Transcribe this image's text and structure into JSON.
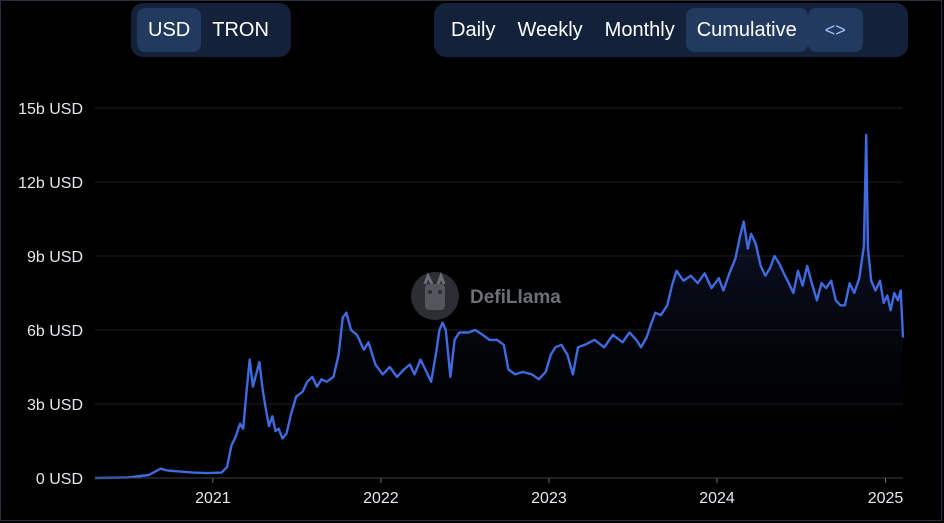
{
  "toggles": {
    "currency": [
      {
        "label": "USD",
        "active": true
      },
      {
        "label": "TRON",
        "active": false
      }
    ],
    "view": [
      {
        "label": "Daily",
        "active": false
      },
      {
        "label": "Weekly",
        "active": false
      },
      {
        "label": "Monthly",
        "active": false
      },
      {
        "label": "Cumulative",
        "active": true
      }
    ],
    "embed_icon": "code-icon",
    "embed_glyph": "<>"
  },
  "watermark": {
    "text": "DefiLlama",
    "icon": "llama-logo-icon"
  },
  "colors": {
    "line": "#3f6ae0",
    "background": "#000000",
    "grid": "#1d1f26",
    "accent": "#223a5e"
  },
  "chart_data": {
    "type": "area",
    "title": "",
    "xlabel": "",
    "ylabel": "",
    "grid": true,
    "y_tick_labels": [
      "0 USD",
      "3b USD",
      "6b USD",
      "9b USD",
      "12b USD",
      "15b USD"
    ],
    "y_ticks": [
      0,
      3,
      6,
      9,
      12,
      15
    ],
    "ylim": [
      0,
      15
    ],
    "y_unit": "billions of USD",
    "x_tick_labels": [
      "2021",
      "2022",
      "2023",
      "2024",
      "2025"
    ],
    "x_ticks": [
      "2021-01-01",
      "2022-01-01",
      "2023-01-01",
      "2024-01-01",
      "2025-01-01"
    ],
    "xlim": [
      "2020-04-20",
      "2025-02-08"
    ],
    "series": [
      {
        "points": [
          [
            "2020-04-20",
            0.0
          ],
          [
            "2020-07-01",
            0.02
          ],
          [
            "2020-08-15",
            0.12
          ],
          [
            "2020-09-10",
            0.38
          ],
          [
            "2020-09-25",
            0.3
          ],
          [
            "2020-10-15",
            0.27
          ],
          [
            "2020-11-20",
            0.22
          ],
          [
            "2020-12-20",
            0.2
          ],
          [
            "2021-01-20",
            0.22
          ],
          [
            "2021-02-01",
            0.45
          ],
          [
            "2021-02-10",
            1.3
          ],
          [
            "2021-02-20",
            1.7
          ],
          [
            "2021-03-01",
            2.2
          ],
          [
            "2021-03-08",
            2.0
          ],
          [
            "2021-03-15",
            3.5
          ],
          [
            "2021-03-22",
            4.8
          ],
          [
            "2021-03-29",
            3.7
          ],
          [
            "2021-04-05",
            4.2
          ],
          [
            "2021-04-12",
            4.7
          ],
          [
            "2021-04-19",
            3.6
          ],
          [
            "2021-04-26",
            2.8
          ],
          [
            "2021-05-03",
            2.1
          ],
          [
            "2021-05-10",
            2.5
          ],
          [
            "2021-05-17",
            1.9
          ],
          [
            "2021-05-24",
            2.0
          ],
          [
            "2021-06-01",
            1.6
          ],
          [
            "2021-06-10",
            1.8
          ],
          [
            "2021-06-20",
            2.6
          ],
          [
            "2021-07-01",
            3.3
          ],
          [
            "2021-07-15",
            3.5
          ],
          [
            "2021-07-25",
            3.9
          ],
          [
            "2021-08-05",
            4.1
          ],
          [
            "2021-08-15",
            3.7
          ],
          [
            "2021-08-25",
            4.0
          ],
          [
            "2021-09-05",
            3.9
          ],
          [
            "2021-09-20",
            4.1
          ],
          [
            "2021-10-01",
            5.0
          ],
          [
            "2021-10-10",
            6.5
          ],
          [
            "2021-10-18",
            6.7
          ],
          [
            "2021-10-28",
            6.0
          ],
          [
            "2021-11-10",
            5.8
          ],
          [
            "2021-11-25",
            5.2
          ],
          [
            "2021-12-05",
            5.5
          ],
          [
            "2021-12-20",
            4.6
          ],
          [
            "2022-01-05",
            4.2
          ],
          [
            "2022-01-20",
            4.5
          ],
          [
            "2022-02-05",
            4.1
          ],
          [
            "2022-02-20",
            4.4
          ],
          [
            "2022-03-05",
            4.6
          ],
          [
            "2022-03-15",
            4.2
          ],
          [
            "2022-03-28",
            4.8
          ],
          [
            "2022-04-10",
            4.3
          ],
          [
            "2022-04-20",
            3.9
          ],
          [
            "2022-05-01",
            5.1
          ],
          [
            "2022-05-08",
            6.0
          ],
          [
            "2022-05-15",
            6.3
          ],
          [
            "2022-05-22",
            6.0
          ],
          [
            "2022-06-01",
            4.1
          ],
          [
            "2022-06-10",
            5.6
          ],
          [
            "2022-06-20",
            5.9
          ],
          [
            "2022-07-10",
            5.9
          ],
          [
            "2022-07-25",
            6.0
          ],
          [
            "2022-08-10",
            5.8
          ],
          [
            "2022-08-25",
            5.6
          ],
          [
            "2022-09-10",
            5.6
          ],
          [
            "2022-09-25",
            5.4
          ],
          [
            "2022-10-05",
            4.4
          ],
          [
            "2022-10-20",
            4.2
          ],
          [
            "2022-11-05",
            4.3
          ],
          [
            "2022-11-25",
            4.2
          ],
          [
            "2022-12-10",
            4.0
          ],
          [
            "2022-12-25",
            4.3
          ],
          [
            "2023-01-05",
            5.0
          ],
          [
            "2023-01-15",
            5.3
          ],
          [
            "2023-01-28",
            5.4
          ],
          [
            "2023-02-10",
            5.0
          ],
          [
            "2023-02-22",
            4.2
          ],
          [
            "2023-03-05",
            5.3
          ],
          [
            "2023-03-20",
            5.4
          ],
          [
            "2023-04-10",
            5.6
          ],
          [
            "2023-05-01",
            5.3
          ],
          [
            "2023-05-20",
            5.8
          ],
          [
            "2023-06-10",
            5.5
          ],
          [
            "2023-06-25",
            5.9
          ],
          [
            "2023-07-10",
            5.6
          ],
          [
            "2023-07-20",
            5.3
          ],
          [
            "2023-08-01",
            5.7
          ],
          [
            "2023-08-10",
            6.2
          ],
          [
            "2023-08-20",
            6.7
          ],
          [
            "2023-09-01",
            6.6
          ],
          [
            "2023-09-15",
            7.0
          ],
          [
            "2023-09-25",
            7.8
          ],
          [
            "2023-10-05",
            8.4
          ],
          [
            "2023-10-20",
            8.0
          ],
          [
            "2023-11-05",
            8.2
          ],
          [
            "2023-11-20",
            7.9
          ],
          [
            "2023-12-05",
            8.3
          ],
          [
            "2023-12-20",
            7.7
          ],
          [
            "2024-01-05",
            8.1
          ],
          [
            "2024-01-15",
            7.6
          ],
          [
            "2024-01-28",
            8.3
          ],
          [
            "2024-02-10",
            8.9
          ],
          [
            "2024-02-20",
            9.8
          ],
          [
            "2024-02-28",
            10.4
          ],
          [
            "2024-03-08",
            9.3
          ],
          [
            "2024-03-15",
            9.9
          ],
          [
            "2024-03-25",
            9.5
          ],
          [
            "2024-04-05",
            8.6
          ],
          [
            "2024-04-15",
            8.2
          ],
          [
            "2024-04-25",
            8.5
          ],
          [
            "2024-05-05",
            9.0
          ],
          [
            "2024-05-15",
            8.7
          ],
          [
            "2024-05-25",
            8.3
          ],
          [
            "2024-06-05",
            7.9
          ],
          [
            "2024-06-15",
            7.5
          ],
          [
            "2024-06-25",
            8.4
          ],
          [
            "2024-07-05",
            7.8
          ],
          [
            "2024-07-15",
            8.6
          ],
          [
            "2024-07-25",
            7.9
          ],
          [
            "2024-08-05",
            7.2
          ],
          [
            "2024-08-15",
            7.9
          ],
          [
            "2024-08-25",
            7.7
          ],
          [
            "2024-09-05",
            8.0
          ],
          [
            "2024-09-15",
            7.2
          ],
          [
            "2024-09-25",
            7.0
          ],
          [
            "2024-10-05",
            7.0
          ],
          [
            "2024-10-15",
            7.9
          ],
          [
            "2024-10-25",
            7.5
          ],
          [
            "2024-11-05",
            8.1
          ],
          [
            "2024-11-15",
            9.4
          ],
          [
            "2024-11-20",
            13.9
          ],
          [
            "2024-11-24",
            9.3
          ],
          [
            "2024-12-01",
            8.0
          ],
          [
            "2024-12-10",
            7.6
          ],
          [
            "2024-12-20",
            8.0
          ],
          [
            "2024-12-28",
            7.1
          ],
          [
            "2025-01-05",
            7.4
          ],
          [
            "2025-01-12",
            6.8
          ],
          [
            "2025-01-20",
            7.5
          ],
          [
            "2025-01-28",
            7.2
          ],
          [
            "2025-02-03",
            7.6
          ],
          [
            "2025-02-08",
            5.7
          ]
        ]
      }
    ]
  }
}
